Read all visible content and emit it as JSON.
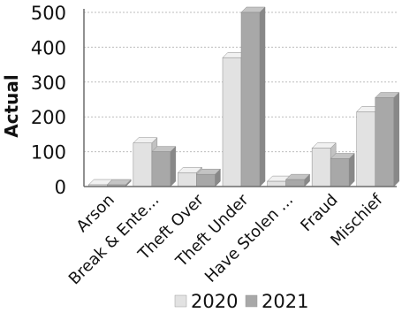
{
  "colors": {
    "series_2020": "#e2e2e2",
    "series_2020_top": "#f1f1f1",
    "series_2020_side": "#c2c2c2",
    "series_2021": "#a8a8a8",
    "series_2021_top": "#c4c4c4",
    "series_2021_side": "#888888",
    "grid": "#bdbdbd",
    "axis": "#6c6c6c"
  },
  "chart_data": {
    "type": "bar",
    "title": "",
    "xlabel": "",
    "ylabel": "Actual",
    "ylim": [
      0,
      500
    ],
    "yticks": [
      0,
      100,
      200,
      300,
      400,
      500
    ],
    "grid": true,
    "legend_position": "bottom",
    "categories": [
      "Arson",
      "Break & Ente...",
      "Theft Over",
      "Theft Under",
      "Have Stolen ...",
      "Fraud",
      "Mischief"
    ],
    "series": [
      {
        "name": "2020",
        "values": [
          5,
          125,
          40,
          370,
          15,
          110,
          215
        ]
      },
      {
        "name": "2021",
        "values": [
          5,
          100,
          35,
          500,
          20,
          80,
          255
        ]
      }
    ]
  }
}
